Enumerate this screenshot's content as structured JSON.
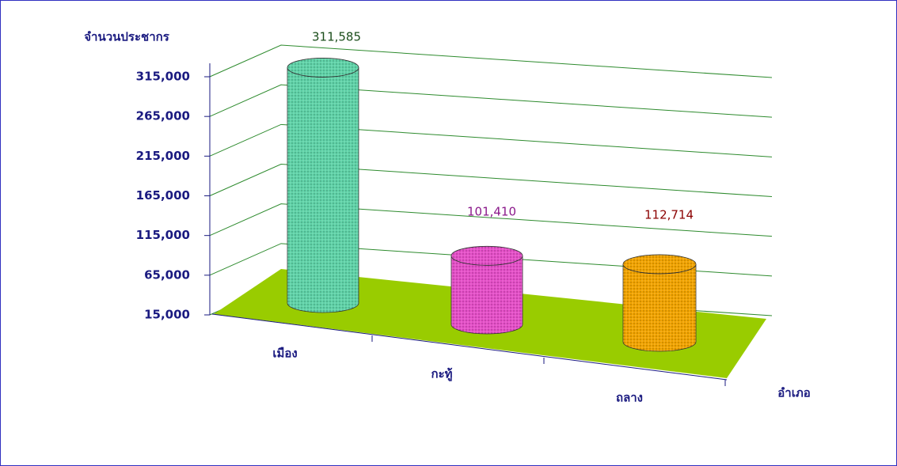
{
  "chart_data": {
    "type": "cylinder",
    "y_label": "จำนวนประชากร",
    "x_label": "อำเภอ",
    "categories": [
      "เมือง",
      "กะทู้",
      "ถลาง"
    ],
    "values": [
      311585,
      101410,
      112714
    ],
    "value_labels": [
      "311,585",
      "101,410",
      "112,714"
    ],
    "colors": [
      "#5fd3a8",
      "#e54fc8",
      "#f2a400"
    ],
    "label_colors": [
      "#1a4d1a",
      "#8b1a8b",
      "#8b0000"
    ],
    "ylim": [
      15000,
      315000
    ],
    "yticks": [
      {
        "value": 15000,
        "label": "15,000"
      },
      {
        "value": 65000,
        "label": "65,000"
      },
      {
        "value": 115000,
        "label": "115,000"
      },
      {
        "value": 165000,
        "label": "165,000"
      },
      {
        "value": 215000,
        "label": "215,000"
      },
      {
        "value": 265000,
        "label": "265,000"
      },
      {
        "value": 315000,
        "label": "315,000"
      }
    ],
    "grid": true
  }
}
